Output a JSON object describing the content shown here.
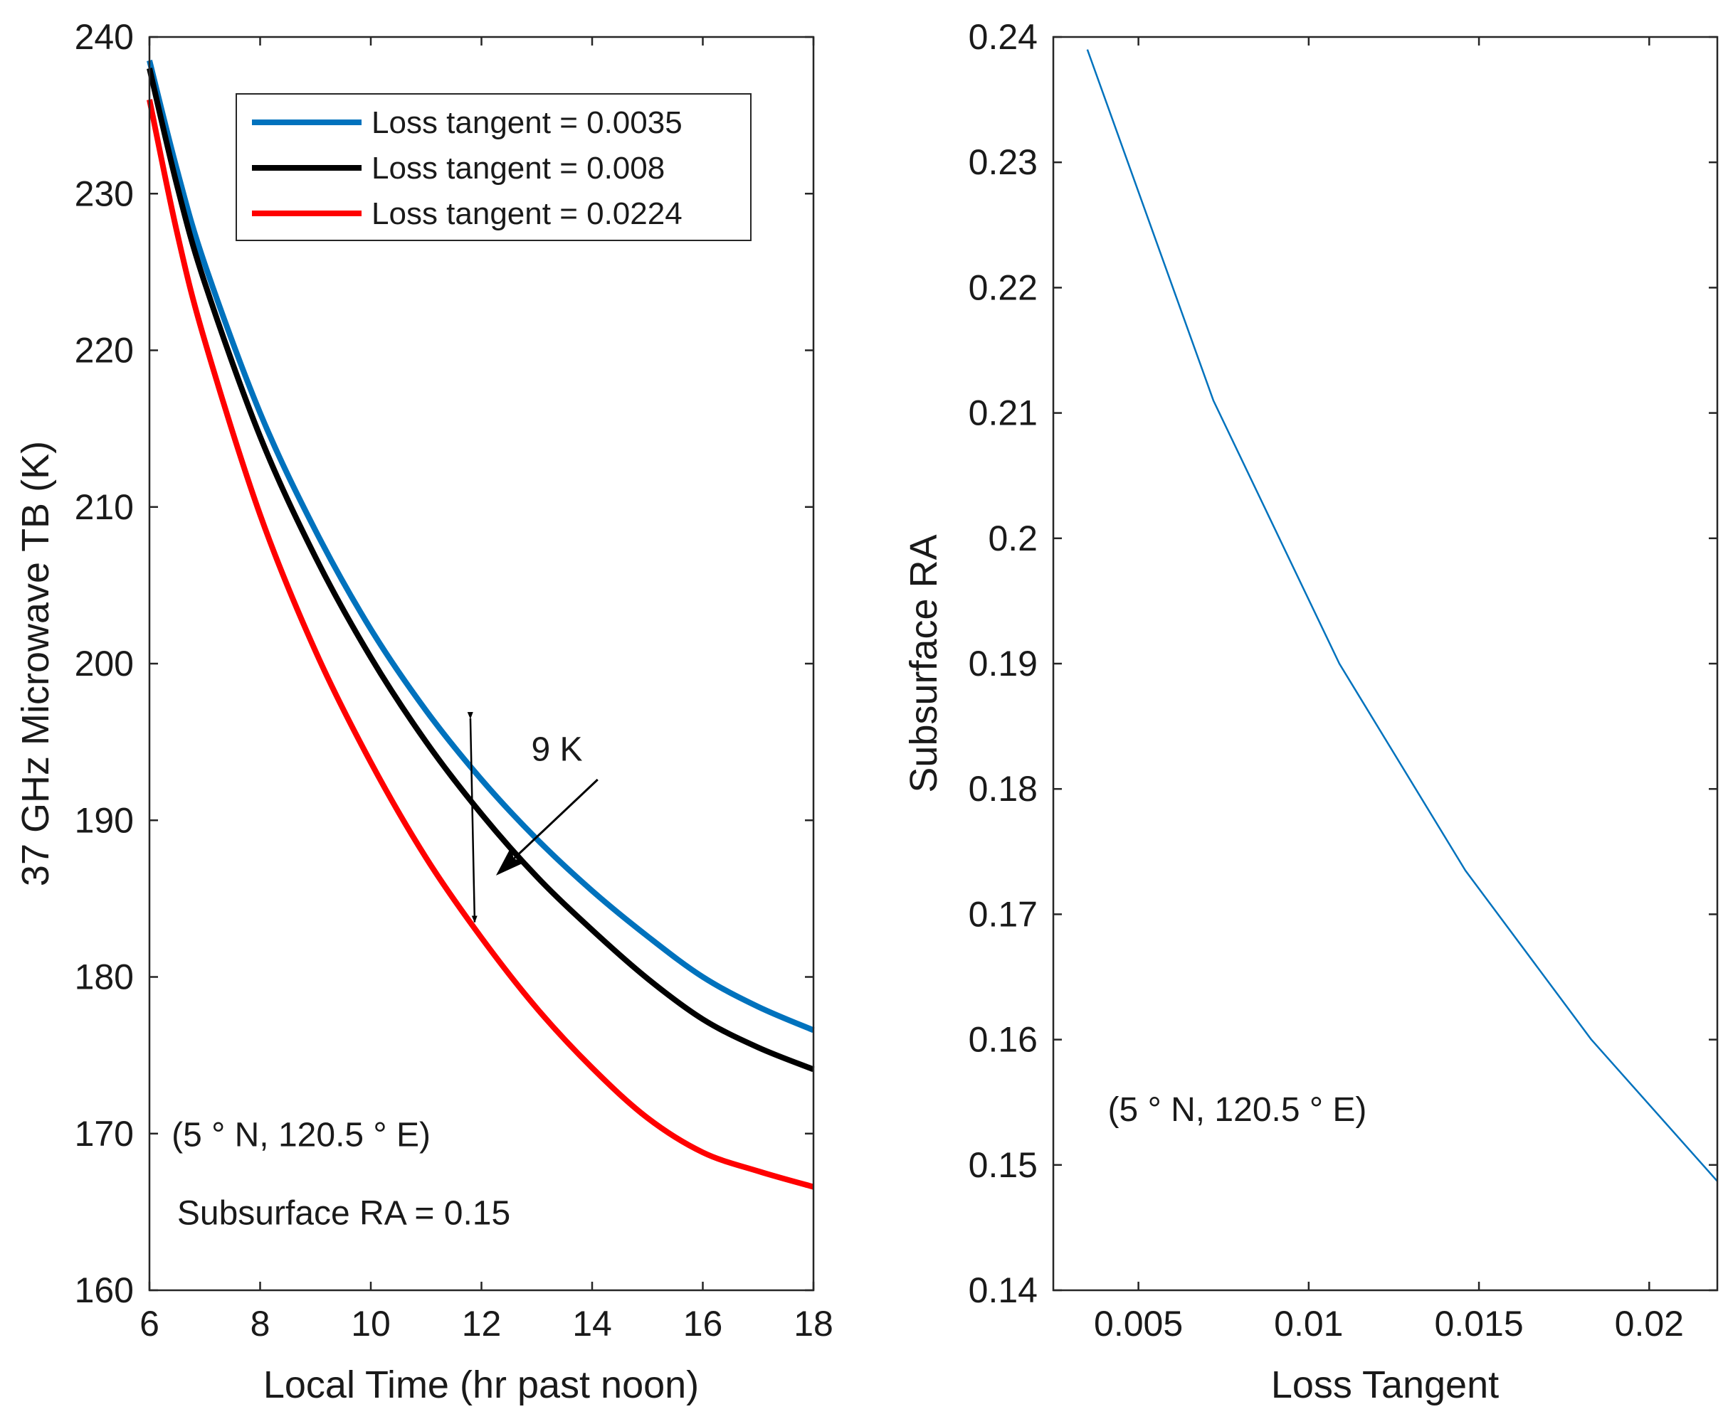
{
  "chart_data": [
    {
      "type": "line",
      "title": "",
      "xlabel": "Local Time (hr past noon)",
      "ylabel": "37 GHz Microwave TB (K)",
      "xlim": [
        6,
        18
      ],
      "ylim": [
        160,
        240
      ],
      "xticks": [
        6,
        8,
        10,
        12,
        14,
        16,
        18
      ],
      "yticks": [
        160,
        170,
        180,
        190,
        200,
        210,
        220,
        230,
        240
      ],
      "legend_position": "top-right",
      "x": [
        6,
        6.5,
        7,
        8,
        9,
        10,
        11,
        12,
        13,
        14,
        15,
        16,
        17,
        18
      ],
      "series": [
        {
          "name": "Loss tangent = 0.0035",
          "color": "#0072BD",
          "values": [
            238.5,
            231.5,
            225.5,
            216.0,
            208.5,
            202.2,
            197.0,
            192.6,
            188.8,
            185.5,
            182.6,
            180.0,
            178.1,
            176.6
          ]
        },
        {
          "name": "Loss tangent = 0.008",
          "color": "#000000",
          "values": [
            238.0,
            230.5,
            224.3,
            214.5,
            206.8,
            200.4,
            195.0,
            190.4,
            186.4,
            183.0,
            179.9,
            177.3,
            175.5,
            174.1
          ]
        },
        {
          "name": "Loss tangent = 0.0224",
          "color": "#FF0000",
          "values": [
            236.0,
            227.5,
            220.6,
            209.5,
            200.8,
            193.7,
            187.6,
            182.5,
            178.0,
            174.2,
            171.0,
            168.8,
            167.6,
            166.6
          ]
        }
      ],
      "annotations": [
        {
          "text": "9 K",
          "x": 12.9,
          "y": 193.8
        },
        {
          "text": "(5 ° N, 120.5 ° E)",
          "x": 6.4,
          "y": 169.2
        },
        {
          "text": "Subsurface RA = 0.15",
          "x": 6.5,
          "y": 164.2
        }
      ],
      "double_arrow": {
        "x": 11.8,
        "y_from": 183.5,
        "y_to": 196.5
      },
      "pointer_arrow": {
        "from": [
          14.1,
          192.6
        ],
        "to": [
          12.3,
          186.6
        ]
      }
    },
    {
      "type": "line",
      "title": "",
      "xlabel": "Loss Tangent",
      "ylabel": "Subsurface RA",
      "xlim": [
        0.0025,
        0.022
      ],
      "ylim": [
        0.14,
        0.24
      ],
      "xticks": [
        0.005,
        0.01,
        0.015,
        0.02
      ],
      "xtick_labels": [
        "0.005",
        "0.01",
        "0.015",
        "0.02"
      ],
      "yticks": [
        0.14,
        0.15,
        0.16,
        0.17,
        0.18,
        0.19,
        0.2,
        0.21,
        0.22,
        0.23,
        0.24
      ],
      "ytick_labels": [
        "0.14",
        "0.15",
        "0.16",
        "0.17",
        "0.18",
        "0.19",
        "0.2",
        "0.21",
        "0.22",
        "0.23",
        "0.24"
      ],
      "series": [
        {
          "name": "Subsurface RA",
          "color": "#0072BD",
          "x": [
            0.0035,
            0.0072,
            0.0109,
            0.0146,
            0.0183,
            0.022
          ],
          "values": [
            0.239,
            0.211,
            0.19,
            0.1735,
            0.16,
            0.1487
          ]
        }
      ],
      "annotations": [
        {
          "text": "(5 ° N, 120.5 ° E)",
          "x": 0.0041,
          "y": 0.1535
        }
      ]
    }
  ]
}
